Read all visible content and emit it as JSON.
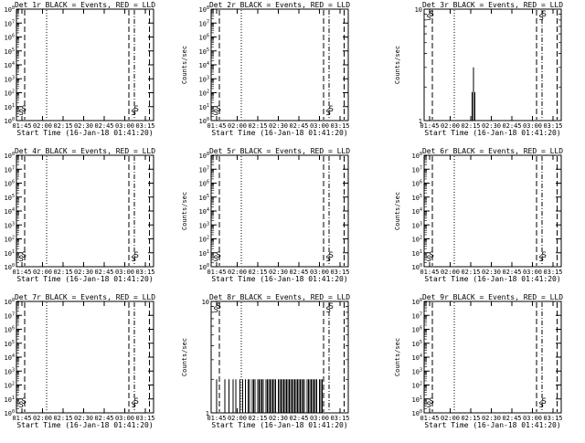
{
  "figure": {
    "ylabel": "Counts/sec",
    "xlabel": "Start Time (16-Jan-18 01:41:20)",
    "x_ticks": [
      "01:45",
      "02:00",
      "02:15",
      "02:30",
      "02:45",
      "03:00",
      "03:15"
    ],
    "colors": {
      "events": "#000000",
      "lld": "#ff0000",
      "axes": "#000000"
    }
  },
  "chart_data": [
    {
      "type": "line",
      "title": "Det 1r BLACK = Events, RED = LLD",
      "x_range_minutes_since_start": [
        0,
        100
      ],
      "y_scale": "log",
      "ylim": [
        1,
        100000000
      ],
      "y_ticks": [
        "10^0",
        "10^1",
        "10^2",
        "10^3",
        "10^4",
        "10^5",
        "10^6",
        "10^7",
        "10^8"
      ],
      "reference_lines_min": {
        "dotted": [
          22
        ],
        "dash": [
          6,
          82,
          97
        ],
        "dashdot": [
          86
        ]
      },
      "annotations": [
        {
          "x": 1,
          "label": "S"
        },
        {
          "x": 83,
          "label": "S"
        }
      ],
      "series": []
    },
    {
      "type": "line",
      "title": "Det 2r BLACK = Events, RED = LLD",
      "x_range_minutes_since_start": [
        0,
        100
      ],
      "y_scale": "log",
      "ylim": [
        1,
        100000000
      ],
      "y_ticks": [
        "10^0",
        "10^1",
        "10^2",
        "10^3",
        "10^4",
        "10^5",
        "10^6",
        "10^7",
        "10^8"
      ],
      "reference_lines_min": {
        "dotted": [
          22
        ],
        "dash": [
          6,
          82,
          97
        ],
        "dashdot": [
          86
        ]
      },
      "annotations": [
        {
          "x": 1,
          "label": "S"
        },
        {
          "x": 83,
          "label": "S"
        }
      ],
      "series": []
    },
    {
      "type": "line",
      "title": "Det 3r BLACK = Events, RED = LLD",
      "x_range_minutes_since_start": [
        0,
        100
      ],
      "y_scale": "log",
      "ylim": [
        1,
        10
      ],
      "y_ticks": [
        "1",
        "10"
      ],
      "reference_lines_min": {
        "dotted": [
          22
        ],
        "dash": [
          6,
          82,
          97
        ],
        "dashdot": [
          86
        ]
      },
      "annotations": [
        {
          "x": 1,
          "label": "S"
        },
        {
          "x": 83,
          "label": "S"
        }
      ],
      "series": [
        {
          "x": [
            35,
            36,
            37
          ],
          "y": [
            1.8,
            3,
            1.8
          ]
        }
      ]
    },
    {
      "type": "line",
      "title": "Det 4r BLACK = Events, RED = LLD",
      "x_range_minutes_since_start": [
        0,
        100
      ],
      "y_scale": "log",
      "ylim": [
        1,
        100000000
      ],
      "y_ticks": [
        "10^0",
        "10^1",
        "10^2",
        "10^3",
        "10^4",
        "10^5",
        "10^6",
        "10^7",
        "10^8"
      ],
      "reference_lines_min": {
        "dotted": [
          22
        ],
        "dash": [
          6,
          82,
          97
        ],
        "dashdot": [
          86
        ]
      },
      "annotations": [
        {
          "x": 1,
          "label": "S"
        },
        {
          "x": 83,
          "label": "S"
        }
      ],
      "series": []
    },
    {
      "type": "line",
      "title": "Det 5r BLACK = Events, RED = LLD",
      "x_range_minutes_since_start": [
        0,
        100
      ],
      "y_scale": "log",
      "ylim": [
        1,
        100000000
      ],
      "y_ticks": [
        "10^0",
        "10^1",
        "10^2",
        "10^3",
        "10^4",
        "10^5",
        "10^6",
        "10^7",
        "10^8"
      ],
      "reference_lines_min": {
        "dotted": [
          22
        ],
        "dash": [
          6,
          82,
          97
        ],
        "dashdot": [
          86
        ]
      },
      "annotations": [
        {
          "x": 1,
          "label": "S"
        },
        {
          "x": 83,
          "label": "S"
        }
      ],
      "series": []
    },
    {
      "type": "line",
      "title": "Det 6r BLACK = Events, RED = LLD",
      "x_range_minutes_since_start": [
        0,
        100
      ],
      "y_scale": "log",
      "ylim": [
        1,
        100000000
      ],
      "y_ticks": [
        "10^0",
        "10^1",
        "10^2",
        "10^3",
        "10^4",
        "10^5",
        "10^6",
        "10^7",
        "10^8"
      ],
      "reference_lines_min": {
        "dotted": [
          22
        ],
        "dash": [
          6,
          82,
          97
        ],
        "dashdot": [
          86
        ]
      },
      "annotations": [
        {
          "x": 1,
          "label": "S"
        },
        {
          "x": 83,
          "label": "S"
        }
      ],
      "series": []
    },
    {
      "type": "line",
      "title": "Det 7r BLACK = Events, RED = LLD",
      "x_range_minutes_since_start": [
        0,
        100
      ],
      "y_scale": "log",
      "ylim": [
        1,
        100000000
      ],
      "y_ticks": [
        "10^0",
        "10^1",
        "10^2",
        "10^3",
        "10^4",
        "10^5",
        "10^6",
        "10^7",
        "10^8"
      ],
      "reference_lines_min": {
        "dotted": [
          22
        ],
        "dash": [
          6,
          82,
          97
        ],
        "dashdot": [
          86
        ]
      },
      "annotations": [
        {
          "x": 1,
          "label": "S"
        },
        {
          "x": 83,
          "label": "S"
        }
      ],
      "series": []
    },
    {
      "type": "line",
      "title": "Det 8r BLACK = Events, RED = LLD",
      "x_range_minutes_since_start": [
        0,
        100
      ],
      "y_scale": "log",
      "ylim": [
        1,
        10
      ],
      "y_ticks": [
        "1",
        "10"
      ],
      "reference_lines_min": {
        "dotted": [
          22
        ],
        "dash": [
          6,
          82,
          97
        ],
        "dashdot": [
          86
        ]
      },
      "annotations": [
        {
          "x": 1,
          "label": "S"
        },
        {
          "x": 83,
          "label": "S"
        }
      ],
      "series": [
        {
          "x": [
            4,
            10,
            13,
            16,
            18,
            21,
            23,
            25,
            27,
            28,
            30,
            31,
            32,
            34,
            35,
            36,
            37,
            38,
            40,
            41,
            42,
            43,
            44,
            45,
            46,
            47,
            49,
            50,
            51,
            52,
            53,
            54,
            55,
            56,
            57,
            58,
            59,
            60,
            61,
            62,
            63,
            64,
            65,
            66,
            67,
            68,
            70,
            71,
            72,
            73,
            74,
            75,
            76,
            77,
            79,
            80,
            81
          ],
          "y": [
            2,
            2,
            2,
            2,
            2,
            2,
            2,
            2,
            2,
            2,
            2,
            2,
            2,
            2,
            2,
            2,
            2,
            2,
            2,
            2,
            2,
            2,
            2,
            2,
            2,
            2,
            2,
            2,
            2,
            2,
            2,
            2,
            2,
            2,
            2,
            2,
            2,
            2,
            2,
            2,
            2,
            2,
            2,
            2,
            2,
            2,
            2,
            2,
            2,
            2,
            2,
            2,
            2,
            2,
            2,
            2,
            2
          ]
        }
      ]
    },
    {
      "type": "line",
      "title": "Det 9r BLACK = Events, RED = LLD",
      "x_range_minutes_since_start": [
        0,
        100
      ],
      "y_scale": "log",
      "ylim": [
        1,
        100000000
      ],
      "y_ticks": [
        "10^0",
        "10^1",
        "10^2",
        "10^3",
        "10^4",
        "10^5",
        "10^6",
        "10^7",
        "10^8"
      ],
      "reference_lines_min": {
        "dotted": [
          22
        ],
        "dash": [
          6,
          82,
          97
        ],
        "dashdot": [
          86
        ]
      },
      "annotations": [
        {
          "x": 1,
          "label": "S"
        },
        {
          "x": 83,
          "label": "S"
        }
      ],
      "series": []
    }
  ]
}
